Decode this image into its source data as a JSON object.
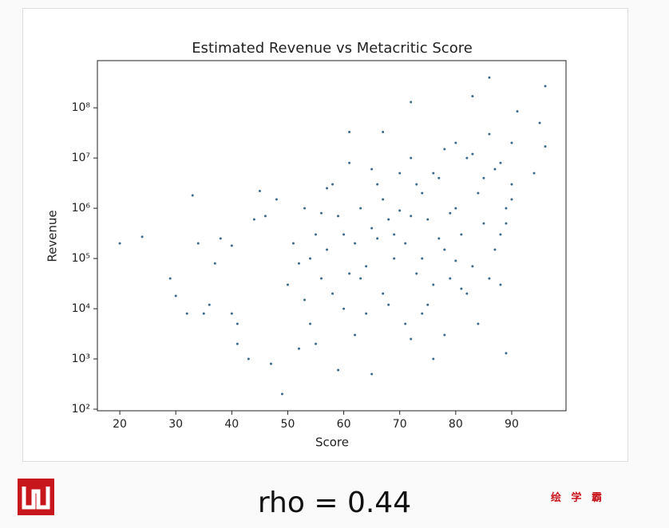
{
  "chart_data": {
    "type": "scatter",
    "title": "Estimated Revenue vs Metacritic Score",
    "x_label": "Score",
    "y_label": "Revenue",
    "log_y": true,
    "color": "#3b6a8c",
    "xlim": [
      16,
      99.7
    ],
    "xticks": [
      20,
      30,
      40,
      50,
      60,
      70,
      80,
      90
    ],
    "ylim": [
      93,
      870000000
    ],
    "yticks": [
      {
        "value": 100,
        "label": "10²"
      },
      {
        "value": 1000,
        "label": "10³"
      },
      {
        "value": 10000,
        "label": "10⁴"
      },
      {
        "value": 100000,
        "label": "10⁵"
      },
      {
        "value": 1000000,
        "label": "10⁶"
      },
      {
        "value": 10000000,
        "label": "10⁷"
      },
      {
        "value": 100000000,
        "label": "10⁸"
      }
    ],
    "x": [
      20,
      24,
      29,
      30,
      32,
      33,
      34,
      35,
      36,
      37,
      38,
      40,
      40,
      41,
      41,
      43,
      44,
      45,
      46,
      47,
      48,
      49,
      52,
      54,
      57,
      59,
      61,
      65,
      67,
      72,
      83,
      86,
      89,
      91,
      96,
      95,
      96,
      94,
      90,
      88,
      50,
      51,
      52,
      53,
      54,
      55,
      56,
      57,
      58,
      59,
      60,
      60,
      55,
      58,
      53,
      56,
      61,
      62,
      63,
      64,
      65,
      66,
      67,
      68,
      69,
      70,
      62,
      64,
      66,
      68,
      70,
      65,
      63,
      67,
      69,
      61,
      71,
      72,
      73,
      74,
      75,
      76,
      77,
      78,
      79,
      80,
      71,
      72,
      73,
      74,
      75,
      76,
      77,
      78,
      79,
      80,
      72,
      74,
      76,
      78,
      80,
      81,
      82,
      83,
      84,
      85,
      86,
      87,
      88,
      89,
      90,
      82,
      84,
      86,
      88,
      85,
      83,
      87,
      81,
      89,
      90
    ],
    "y": [
      200000,
      270000,
      40000,
      18000,
      8000,
      1800000,
      200000,
      8000,
      12000,
      80000,
      250000,
      180000,
      8000,
      5000,
      2000,
      1000,
      600000,
      2200000,
      700000,
      800,
      1500000,
      200,
      1600,
      100000,
      2500000,
      600,
      33000000,
      500,
      33000000,
      130000000,
      170000000,
      400000000,
      1300,
      85000000,
      270000000,
      50000000,
      17000000,
      5000000,
      3000000,
      30000,
      30000,
      200000,
      80000,
      1000000,
      5000,
      300000,
      40000,
      150000,
      20000,
      700000,
      10000,
      300000,
      2000,
      3000000,
      15000,
      800000,
      50000,
      200000,
      1000000,
      8000,
      400000,
      3000000,
      20000,
      600000,
      100000,
      5000000,
      3000,
      70000,
      250000,
      12000,
      900000,
      6000000,
      40000,
      1500000,
      300000,
      8000000,
      200000,
      10000000,
      50000,
      2000000,
      600000,
      30000,
      4000000,
      150000,
      800000,
      20000000,
      5000,
      700000,
      3000000,
      100000,
      12000,
      5000000,
      250000,
      15000000,
      40000,
      1000000,
      2500,
      8000,
      1000,
      3000,
      90000,
      300000,
      10000000,
      70000,
      2000000,
      500000,
      30000000,
      150000,
      8000000,
      1000000,
      20000000,
      20000,
      5000,
      40000,
      300000,
      4000000,
      12000000,
      6000000,
      25000,
      500000,
      1500000
    ]
  },
  "caption": "rho = 0.44",
  "watermark": "绘 学 霸"
}
